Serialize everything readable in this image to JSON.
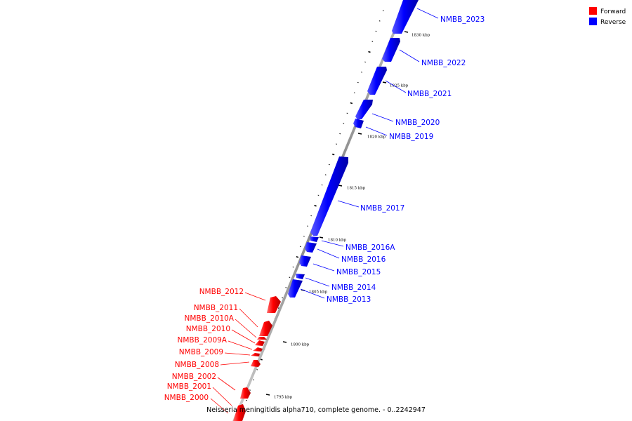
{
  "caption": "Neisseria meningitidis alpha710, complete genome. - 0..2242947",
  "legend": [
    {
      "label": "Forward",
      "color": "#ff0000"
    },
    {
      "label": "Reverse",
      "color": "#0000ff"
    }
  ],
  "ticks": [
    {
      "label": "1795 kbp"
    },
    {
      "label": "1800 kbp"
    },
    {
      "label": "1805 kbp"
    },
    {
      "label": "1810 kbp"
    },
    {
      "label": "1815 kbp"
    },
    {
      "label": "1820 kbp"
    },
    {
      "label": "1825 kbp"
    },
    {
      "label": "1830 kbp"
    }
  ],
  "genes_reverse": [
    {
      "label": "NMBB_2023"
    },
    {
      "label": "NMBB_2022"
    },
    {
      "label": "NMBB_2021"
    },
    {
      "label": "NMBB_2020"
    },
    {
      "label": "NMBB_2019"
    },
    {
      "label": "NMBB_2017"
    },
    {
      "label": "NMBB_2016A"
    },
    {
      "label": "NMBB_2016"
    },
    {
      "label": "NMBB_2015"
    },
    {
      "label": "NMBB_2014"
    },
    {
      "label": "NMBB_2013"
    }
  ],
  "genes_forward": [
    {
      "label": "NMBB_2012"
    },
    {
      "label": "NMBB_2011"
    },
    {
      "label": "NMBB_2010A"
    },
    {
      "label": "NMBB_2010"
    },
    {
      "label": "NMBB_2009A"
    },
    {
      "label": "NMBB_2009"
    },
    {
      "label": "NMBB_2008"
    },
    {
      "label": "NMBB_2002"
    },
    {
      "label": "NMBB_2001"
    },
    {
      "label": "NMBB_2000"
    }
  ]
}
